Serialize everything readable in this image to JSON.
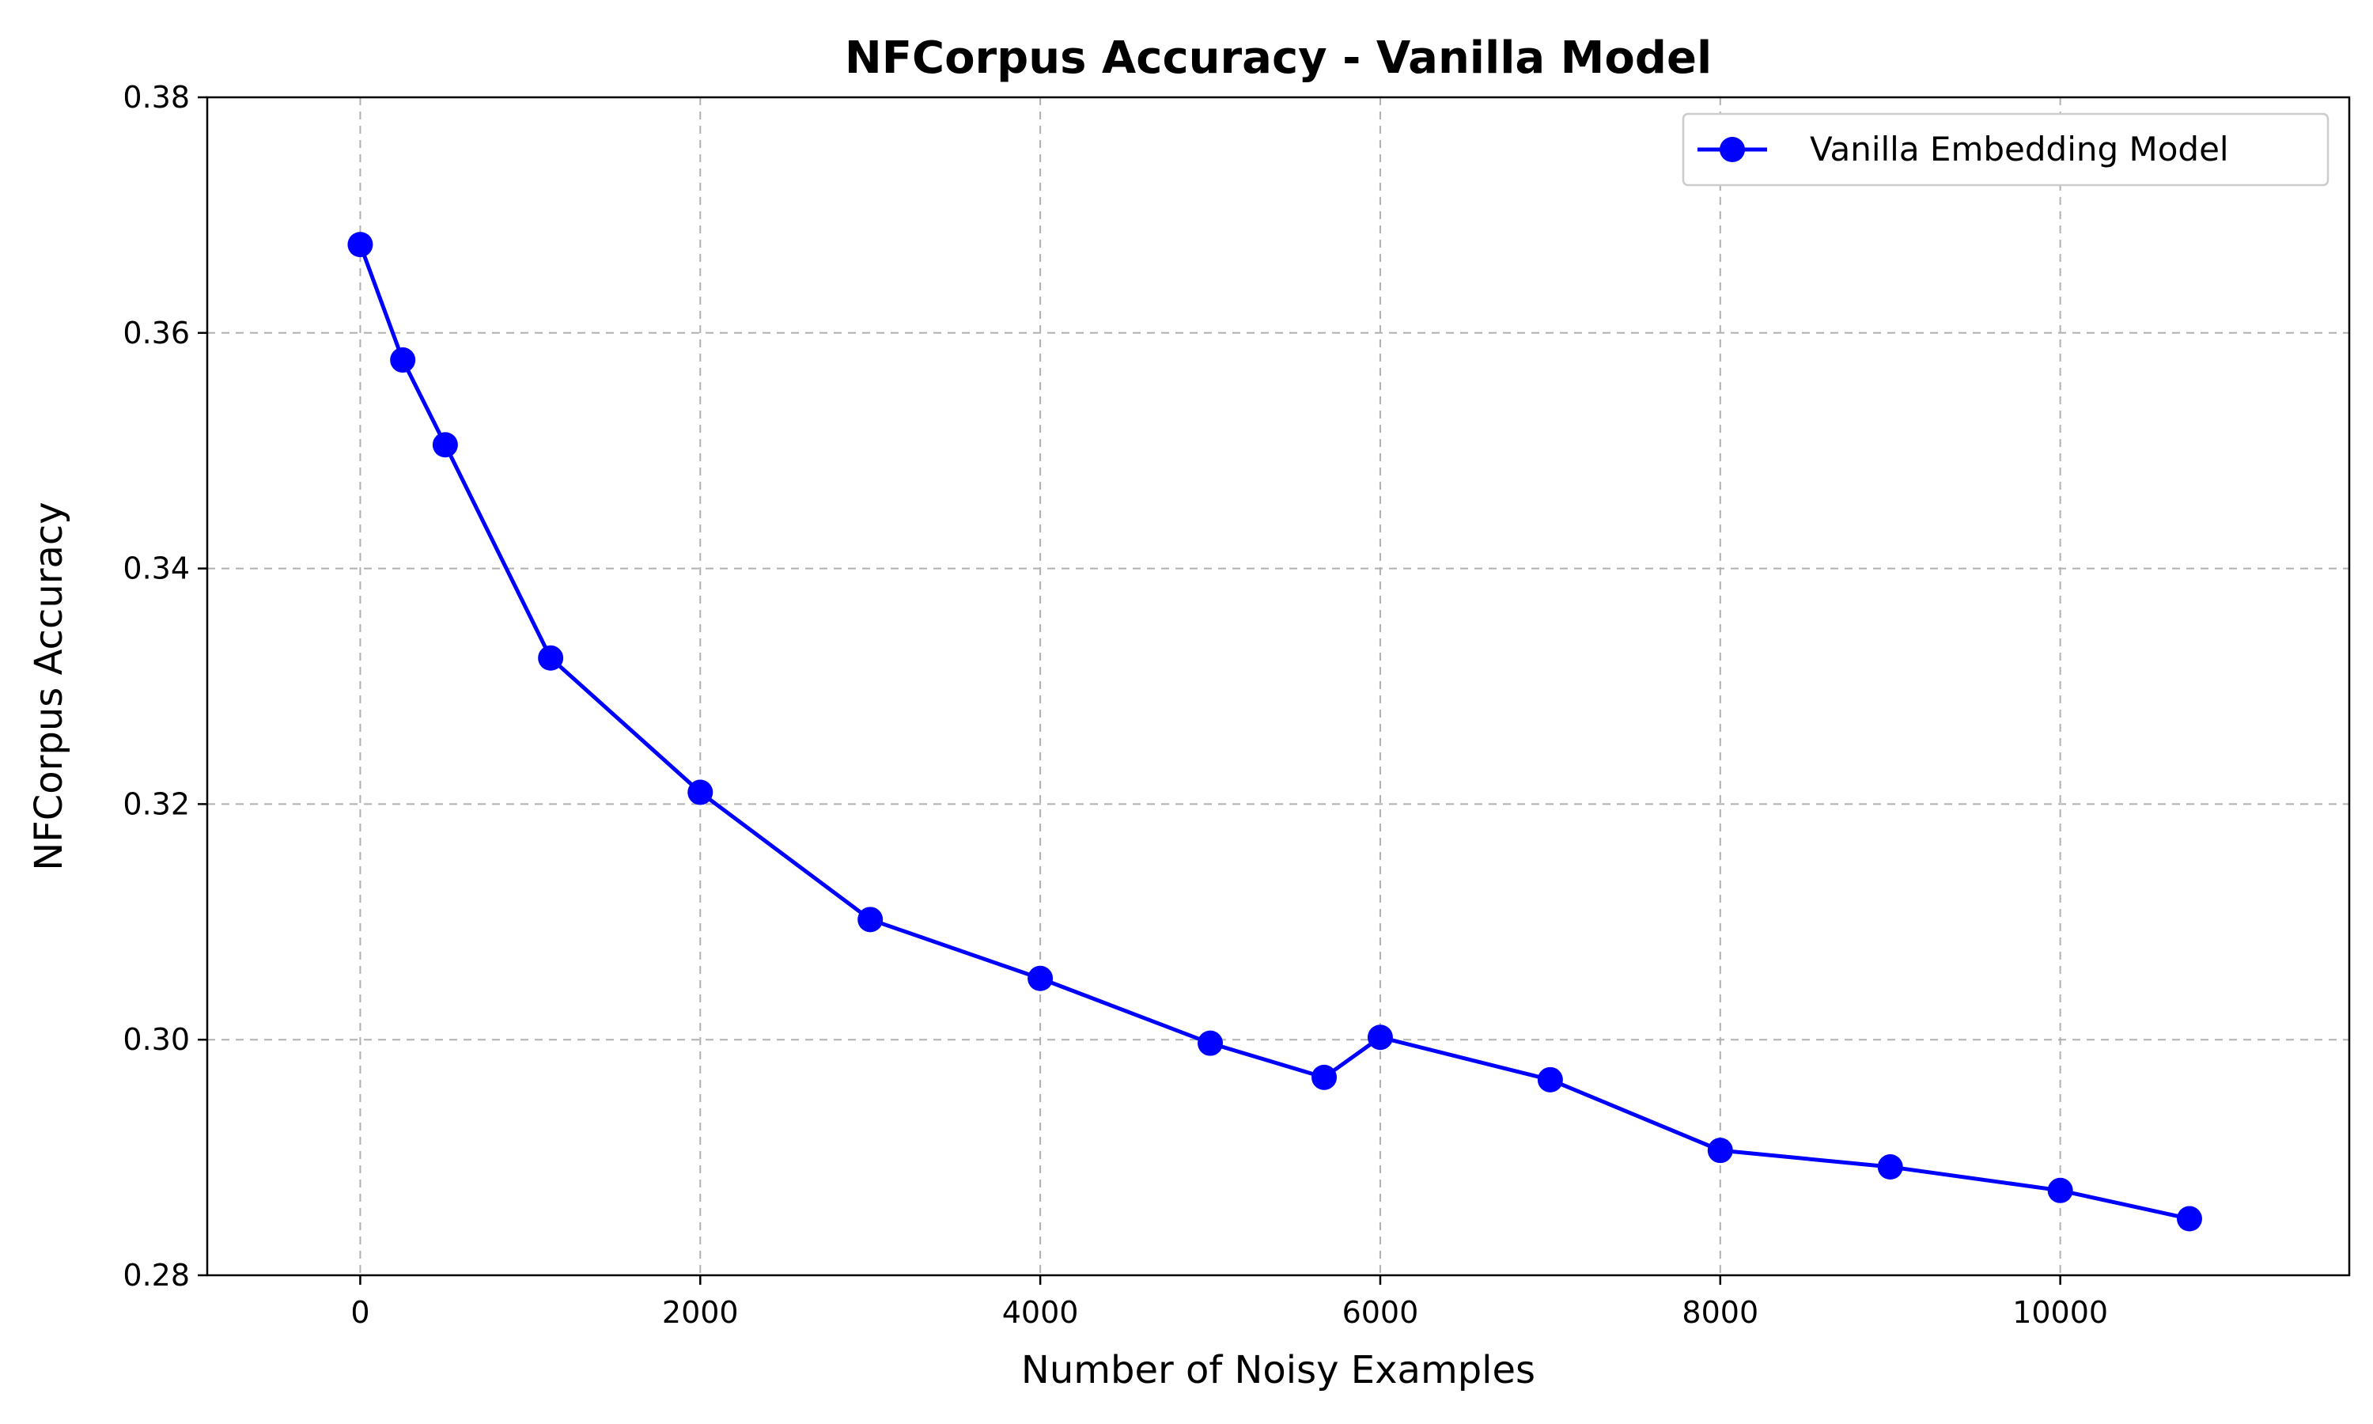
{
  "chart_data": {
    "type": "line",
    "title": "NFCorpus Accuracy - Vanilla Model",
    "xlabel": "Number of Noisy Examples",
    "ylabel": "NFCorpus Accuracy",
    "xlim": [
      -900,
      11700
    ],
    "ylim": [
      0.28,
      0.38
    ],
    "xticks": [
      0,
      2000,
      4000,
      6000,
      8000,
      10000
    ],
    "xtick_labels": [
      "0",
      "2000",
      "4000",
      "6000",
      "8000",
      "10000"
    ],
    "yticks": [
      0.28,
      0.3,
      0.32,
      0.34,
      0.36,
      0.38
    ],
    "ytick_labels": [
      "0.28",
      "0.30",
      "0.32",
      "0.34",
      "0.36",
      "0.38"
    ],
    "grid": true,
    "legend_position": "top-right",
    "series": [
      {
        "name": "Vanilla Embedding Model",
        "color": "#0000ff",
        "marker": "circle",
        "x": [
          0,
          250,
          500,
          1120,
          2000,
          3000,
          4000,
          5000,
          5670,
          6000,
          7000,
          8000,
          9000,
          10000,
          10760
        ],
        "y": [
          0.3675,
          0.3577,
          0.3505,
          0.3324,
          0.321,
          0.3102,
          0.3052,
          0.2997,
          0.2968,
          0.3002,
          0.2966,
          0.2906,
          0.2892,
          0.2872,
          0.2848
        ]
      }
    ]
  }
}
